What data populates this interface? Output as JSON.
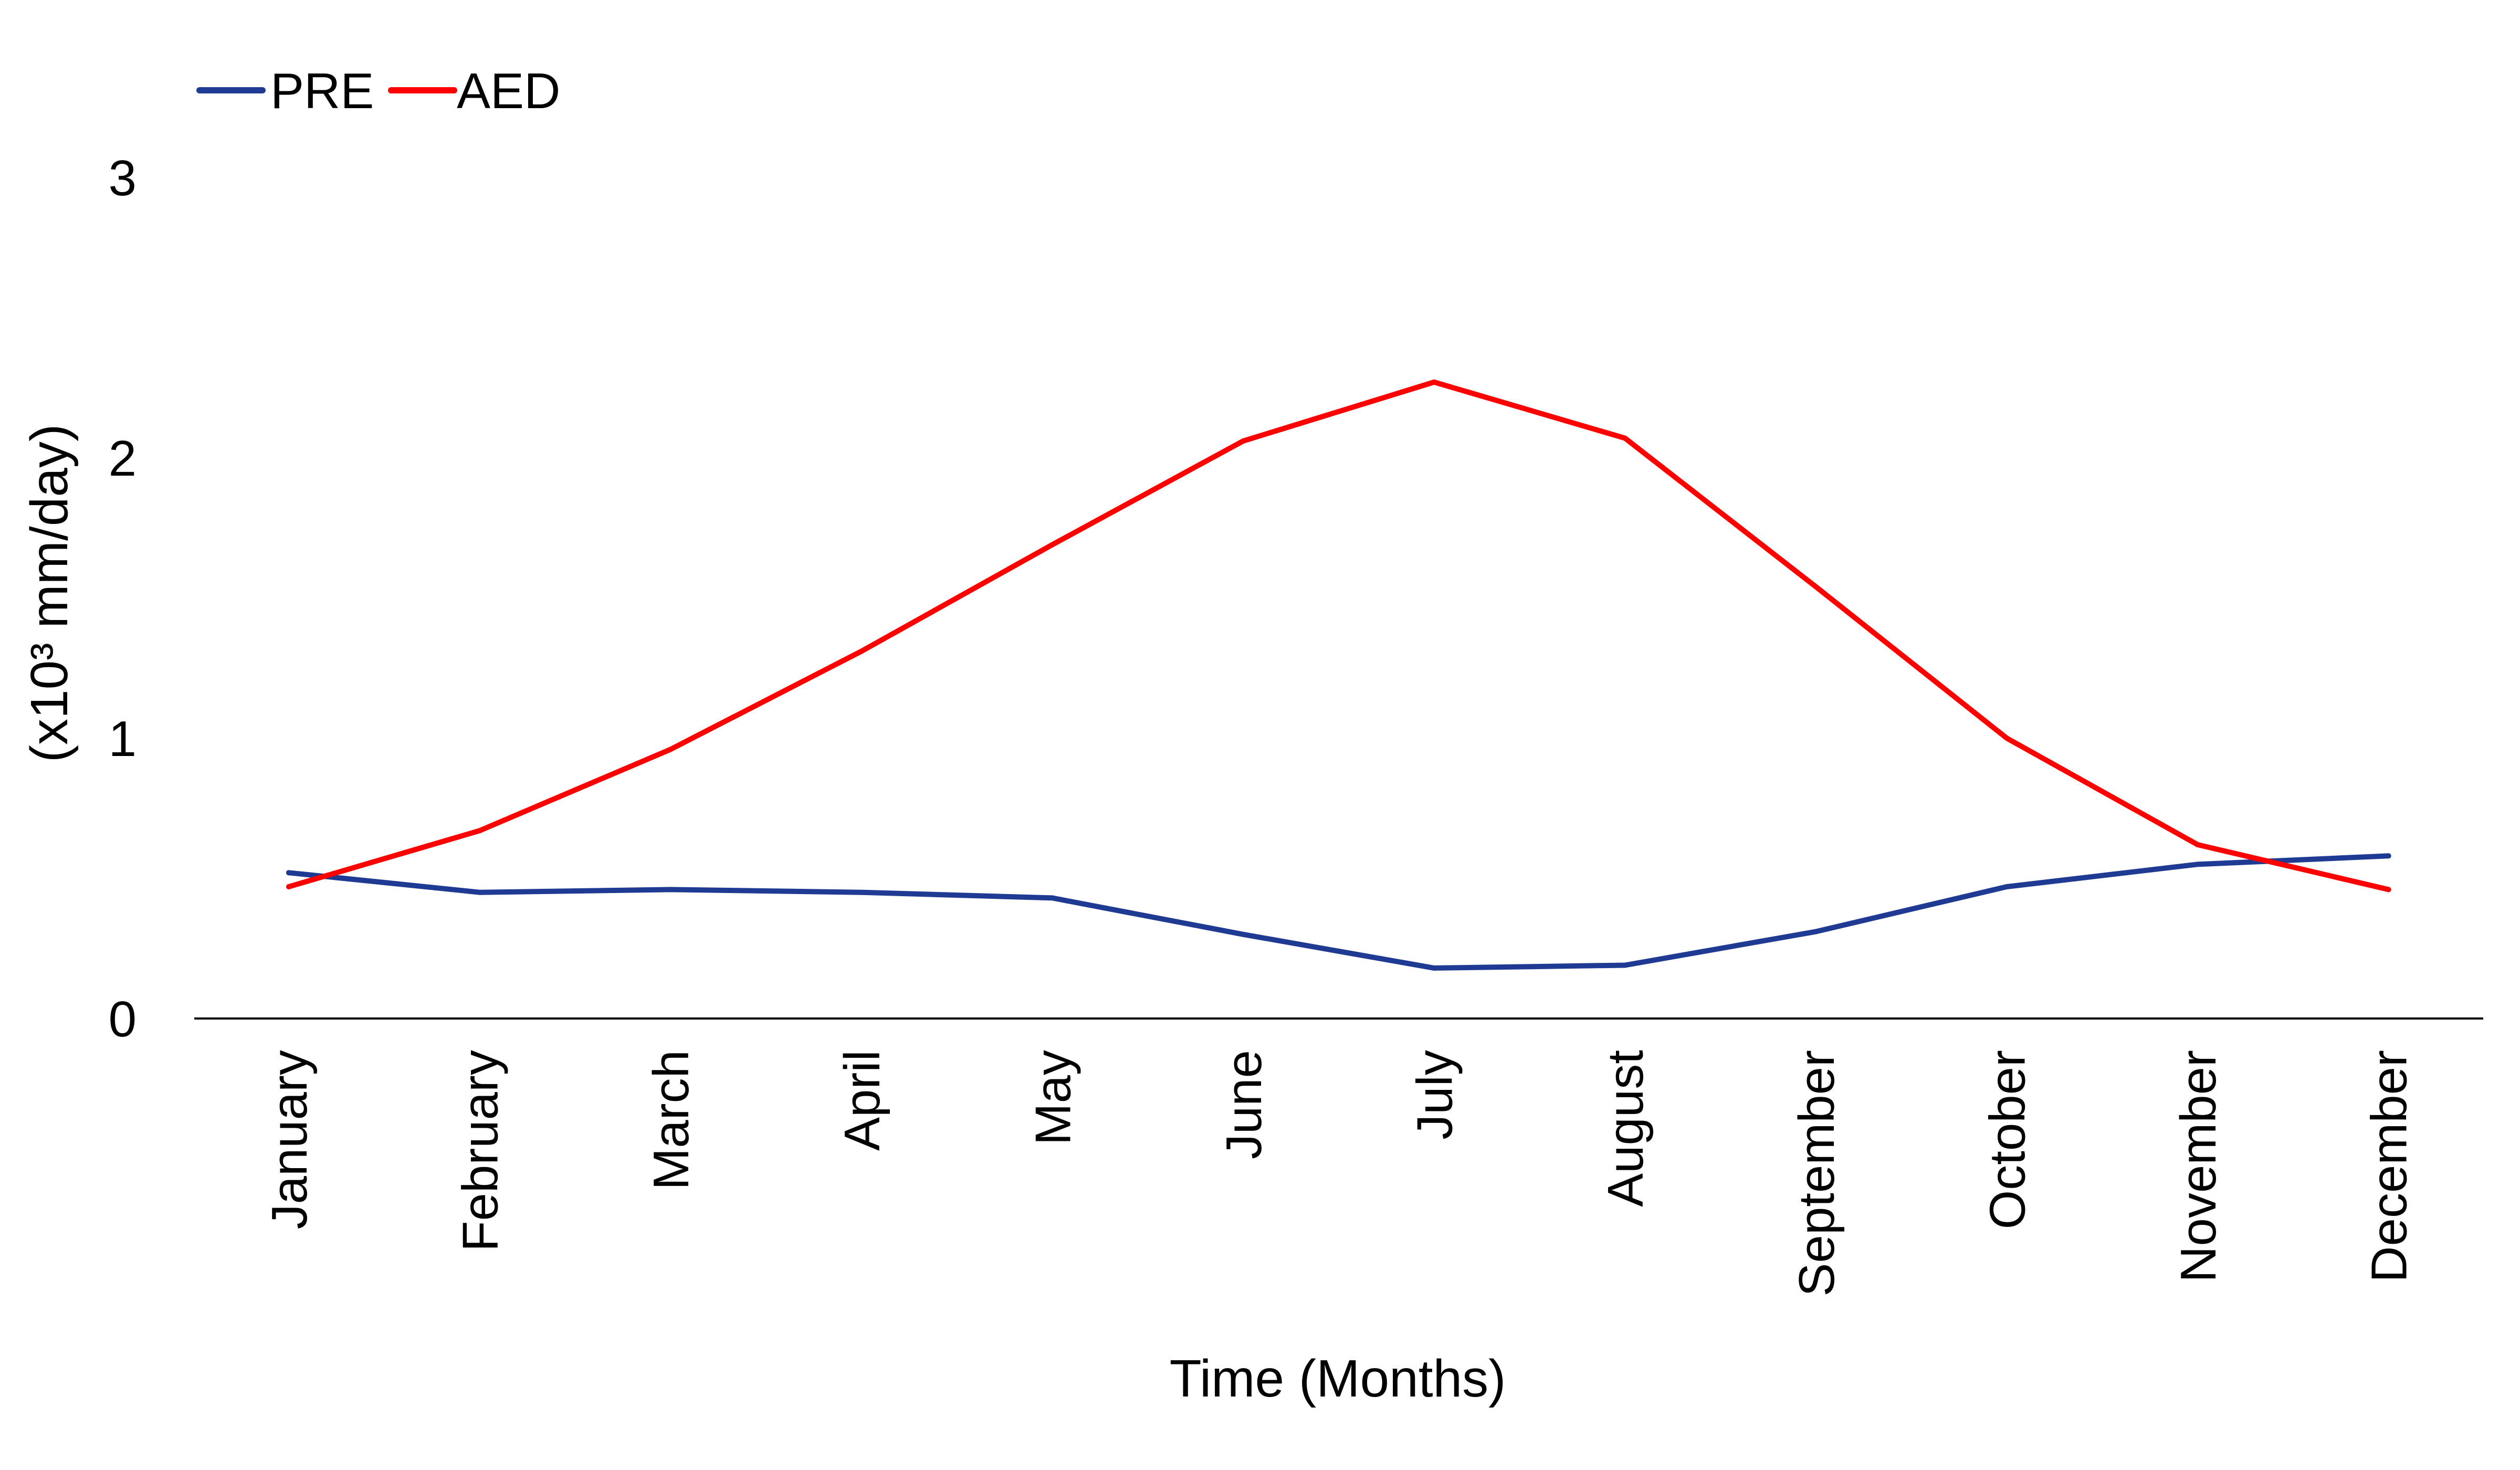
{
  "chart_data": {
    "type": "line",
    "title": "",
    "xlabel": "Time (Months)",
    "ylabel": "(x10³ mm/day)",
    "categories": [
      "January",
      "February",
      "March",
      "April",
      "May",
      "June",
      "July",
      "August",
      "September",
      "October",
      "November",
      "December"
    ],
    "series": [
      {
        "name": "PRE",
        "color": "#1f3a93",
        "values": [
          0.52,
          0.45,
          0.46,
          0.45,
          0.43,
          0.3,
          0.18,
          0.19,
          0.31,
          0.47,
          0.55,
          0.58
        ]
      },
      {
        "name": "AED",
        "color": "#ff0000",
        "values": [
          0.47,
          0.67,
          0.96,
          1.31,
          1.69,
          2.06,
          2.27,
          2.07,
          1.54,
          1.0,
          0.62,
          0.46
        ]
      }
    ],
    "yticks": [
      "0",
      "1",
      "2",
      "3"
    ],
    "ylim": [
      0,
      3
    ],
    "grid": false,
    "legend_position": "top-left"
  }
}
